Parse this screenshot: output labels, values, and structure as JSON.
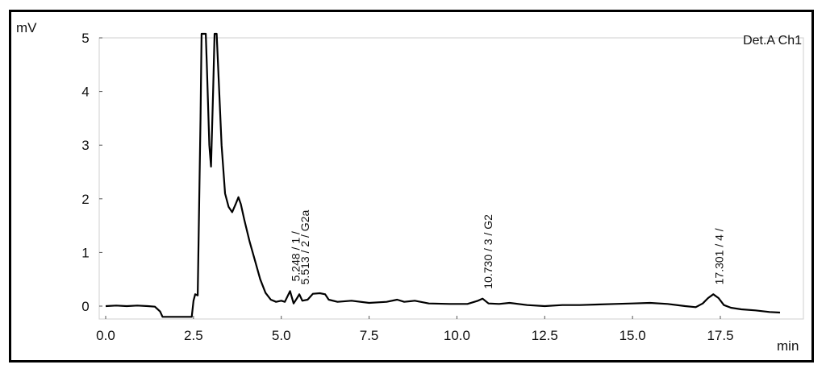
{
  "chart_data": {
    "type": "line",
    "title": "",
    "ylabel": "mV",
    "xlabel": "min",
    "legend": "Det.A Ch1",
    "xlim": [
      0,
      19.6
    ],
    "ylim": [
      -0.2,
      5
    ],
    "x_ticks": [
      "0.0",
      "2.5",
      "5.0",
      "7.5",
      "10.0",
      "12.5",
      "15.0",
      "17.5"
    ],
    "x_tick_values": [
      0,
      2.5,
      5,
      7.5,
      10,
      12.5,
      15,
      17.5
    ],
    "y_ticks": [
      "0",
      "1",
      "2",
      "3",
      "4",
      "5"
    ],
    "y_tick_values": [
      0,
      1,
      2,
      3,
      4,
      5
    ],
    "series": [
      {
        "points": [
          [
            0.0,
            0.0
          ],
          [
            0.3,
            0.01
          ],
          [
            0.6,
            0.0
          ],
          [
            0.9,
            0.01
          ],
          [
            1.2,
            0.0
          ],
          [
            1.4,
            -0.01
          ],
          [
            1.55,
            -0.1
          ],
          [
            1.62,
            -0.2
          ],
          [
            2.45,
            -0.2
          ],
          [
            2.5,
            0.1
          ],
          [
            2.55,
            0.22
          ],
          [
            2.62,
            0.2
          ],
          [
            2.7,
            3.5
          ],
          [
            2.73,
            5.2
          ],
          [
            2.85,
            5.2
          ],
          [
            2.88,
            4.5
          ],
          [
            2.95,
            3.0
          ],
          [
            3.0,
            2.6
          ],
          [
            3.06,
            4.0
          ],
          [
            3.1,
            5.2
          ],
          [
            3.16,
            5.2
          ],
          [
            3.2,
            4.5
          ],
          [
            3.3,
            3.0
          ],
          [
            3.4,
            2.1
          ],
          [
            3.5,
            1.85
          ],
          [
            3.6,
            1.75
          ],
          [
            3.7,
            1.9
          ],
          [
            3.78,
            2.03
          ],
          [
            3.85,
            1.9
          ],
          [
            3.95,
            1.6
          ],
          [
            4.1,
            1.2
          ],
          [
            4.25,
            0.85
          ],
          [
            4.4,
            0.5
          ],
          [
            4.55,
            0.25
          ],
          [
            4.7,
            0.12
          ],
          [
            4.85,
            0.08
          ],
          [
            5.0,
            0.1
          ],
          [
            5.1,
            0.08
          ],
          [
            5.25,
            0.28
          ],
          [
            5.35,
            0.05
          ],
          [
            5.45,
            0.15
          ],
          [
            5.513,
            0.22
          ],
          [
            5.6,
            0.1
          ],
          [
            5.75,
            0.12
          ],
          [
            5.9,
            0.23
          ],
          [
            6.1,
            0.24
          ],
          [
            6.25,
            0.22
          ],
          [
            6.35,
            0.12
          ],
          [
            6.6,
            0.08
          ],
          [
            7.0,
            0.1
          ],
          [
            7.5,
            0.06
          ],
          [
            8.0,
            0.08
          ],
          [
            8.3,
            0.12
          ],
          [
            8.5,
            0.08
          ],
          [
            8.8,
            0.1
          ],
          [
            9.2,
            0.05
          ],
          [
            9.8,
            0.04
          ],
          [
            10.3,
            0.04
          ],
          [
            10.6,
            0.1
          ],
          [
            10.73,
            0.14
          ],
          [
            10.9,
            0.05
          ],
          [
            11.2,
            0.04
          ],
          [
            11.5,
            0.06
          ],
          [
            12.0,
            0.02
          ],
          [
            12.5,
            0.0
          ],
          [
            13.0,
            0.02
          ],
          [
            13.5,
            0.02
          ],
          [
            14.0,
            0.03
          ],
          [
            14.5,
            0.04
          ],
          [
            15.0,
            0.05
          ],
          [
            15.5,
            0.06
          ],
          [
            16.0,
            0.04
          ],
          [
            16.5,
            0.0
          ],
          [
            16.8,
            -0.02
          ],
          [
            17.0,
            0.05
          ],
          [
            17.15,
            0.15
          ],
          [
            17.301,
            0.22
          ],
          [
            17.45,
            0.15
          ],
          [
            17.6,
            0.02
          ],
          [
            17.8,
            -0.03
          ],
          [
            18.1,
            -0.06
          ],
          [
            18.5,
            -0.08
          ],
          [
            18.9,
            -0.11
          ],
          [
            19.2,
            -0.12
          ]
        ]
      }
    ],
    "annotations": [
      {
        "x": 5.248,
        "text": "5.248 / 1 /"
      },
      {
        "x": 5.513,
        "text": "5.513 / 2 / G2a"
      },
      {
        "x": 10.73,
        "text": "10.730 / 3 / G2"
      },
      {
        "x": 17.301,
        "text": "17.301 / 4 /"
      }
    ]
  }
}
